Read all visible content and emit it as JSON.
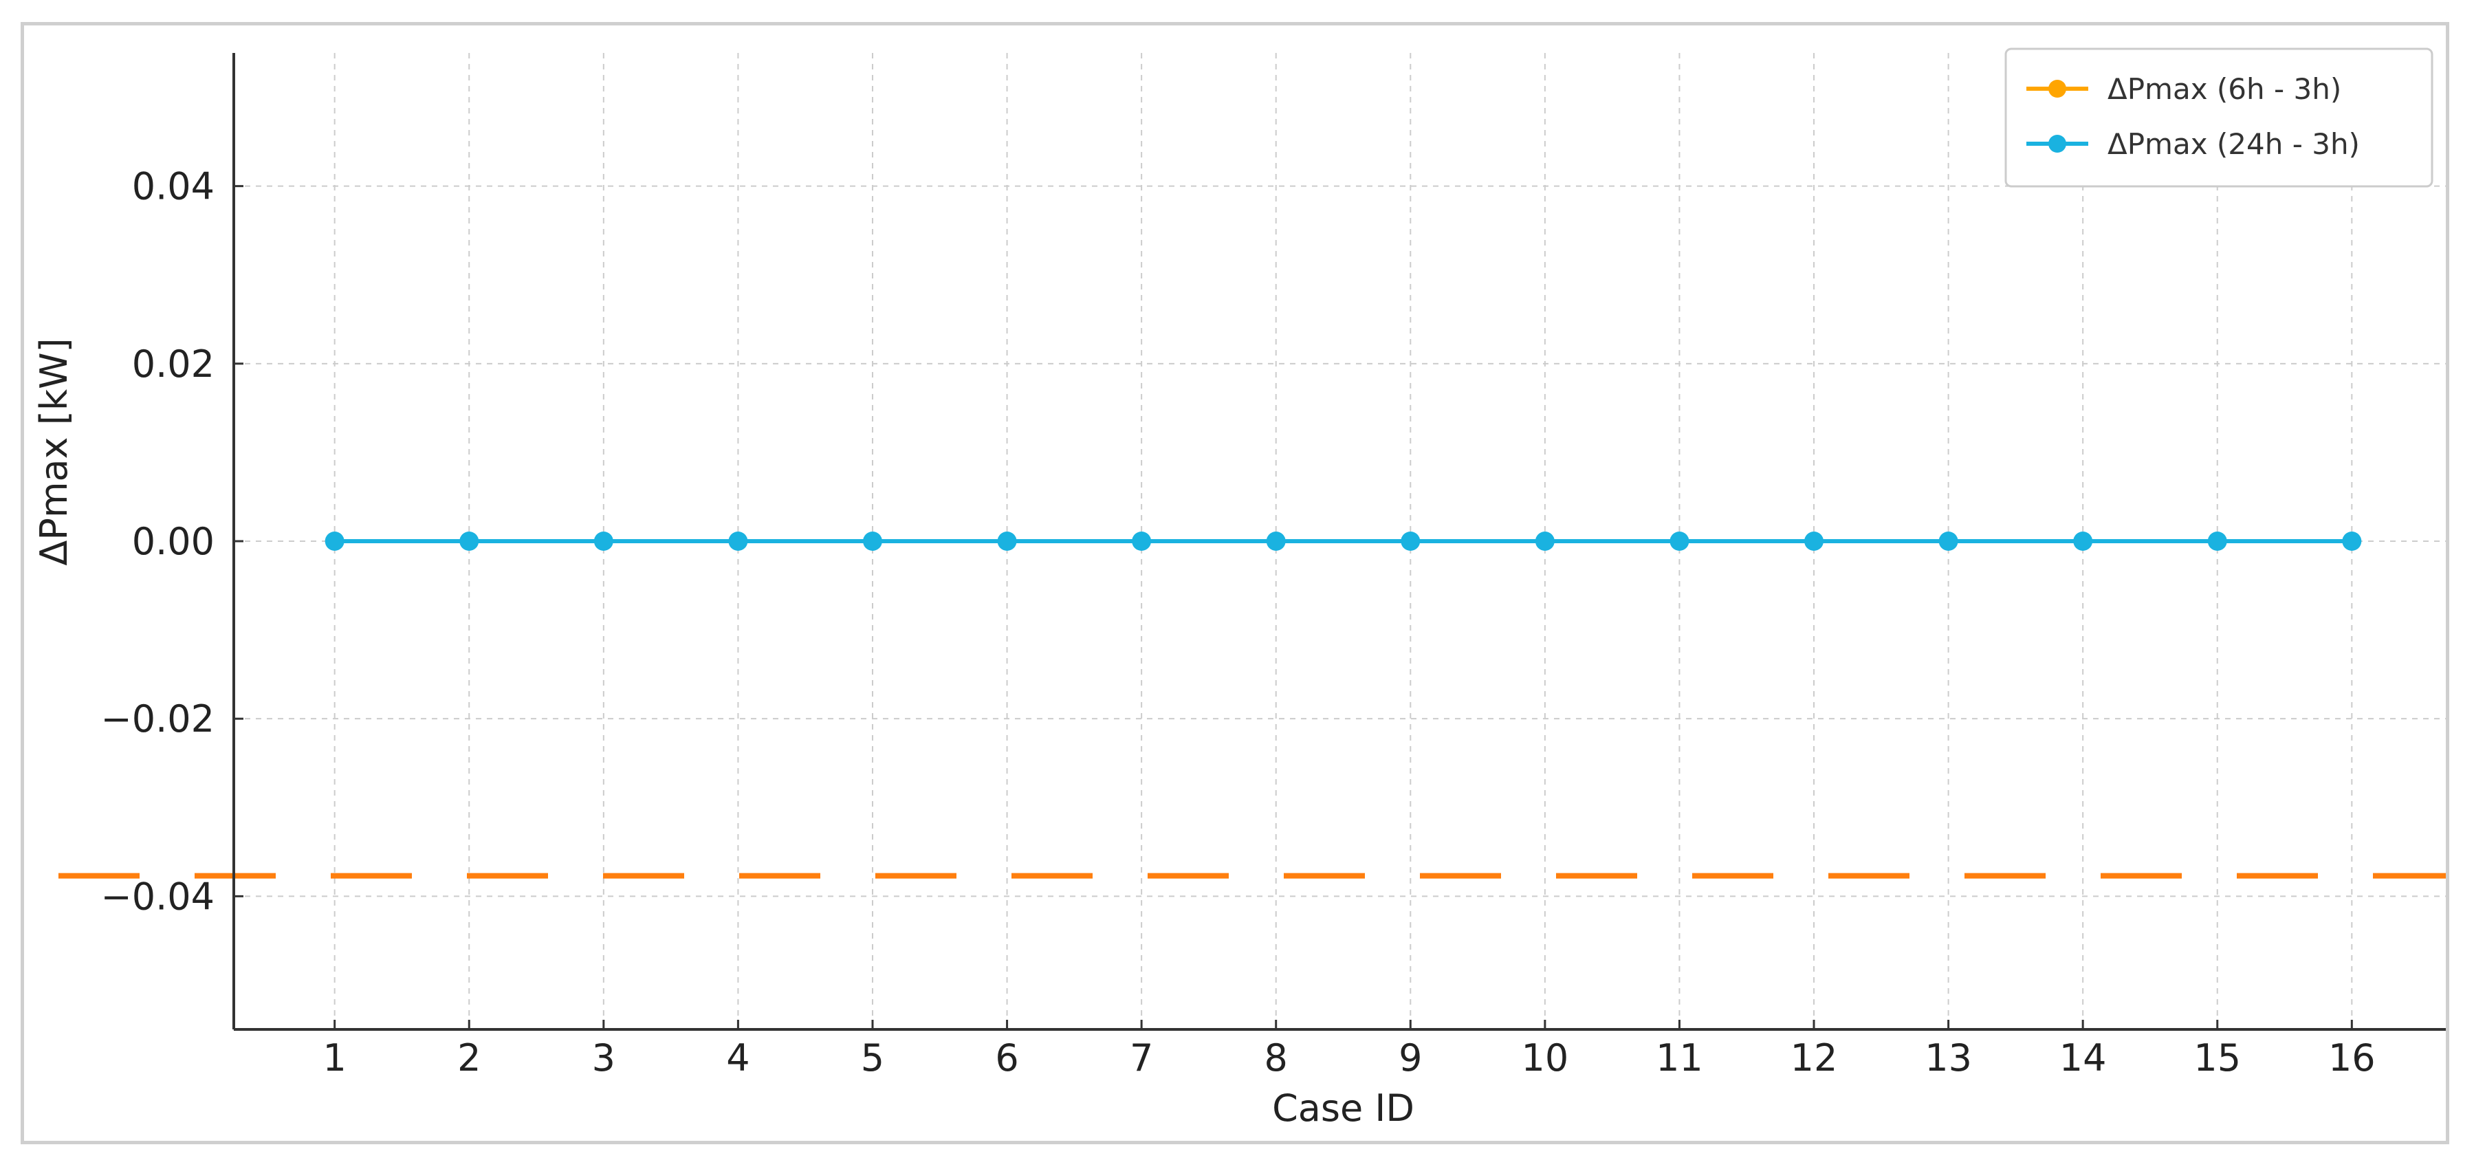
{
  "chart_data": {
    "type": "line",
    "title": "",
    "xlabel": "Case ID",
    "ylabel": "ΔPmax [kW]",
    "x": [
      1,
      2,
      3,
      4,
      5,
      6,
      7,
      8,
      9,
      10,
      11,
      12,
      13,
      14,
      15,
      16
    ],
    "x_ticks": [
      "1",
      "2",
      "3",
      "4",
      "5",
      "6",
      "7",
      "8",
      "9",
      "10",
      "11",
      "12",
      "13",
      "14",
      "15",
      "16"
    ],
    "xlim": [
      0.25,
      16.75
    ],
    "ylim": [
      -0.055,
      0.055
    ],
    "y_ticks": [
      -0.04,
      -0.02,
      0.0,
      0.02,
      0.04
    ],
    "y_tick_labels": [
      "−0.04",
      "−0.02",
      "0.00",
      "0.02",
      "0.04"
    ],
    "grid": true,
    "legend_position": "top-right",
    "series": [
      {
        "name": "ΔPmax (6h - 3h)",
        "color": "#ffa500",
        "line_color": "#ff7f0e",
        "marker": "circle",
        "style": "dashed",
        "values": [
          -0.0377,
          -0.0377,
          -0.0377,
          -0.0377,
          -0.0377,
          -0.0377,
          -0.0377,
          -0.0377,
          -0.0377,
          -0.0377,
          -0.0377,
          -0.0377,
          -0.0377,
          -0.0377,
          -0.0377,
          -0.0377
        ]
      },
      {
        "name": "ΔPmax (24h - 3h)",
        "color": "#1ab2e0",
        "marker": "circle",
        "style": "solid",
        "values": [
          0,
          0,
          0,
          0,
          0,
          0,
          0,
          0,
          0,
          0,
          0,
          0,
          0,
          0,
          0,
          0
        ]
      }
    ]
  }
}
